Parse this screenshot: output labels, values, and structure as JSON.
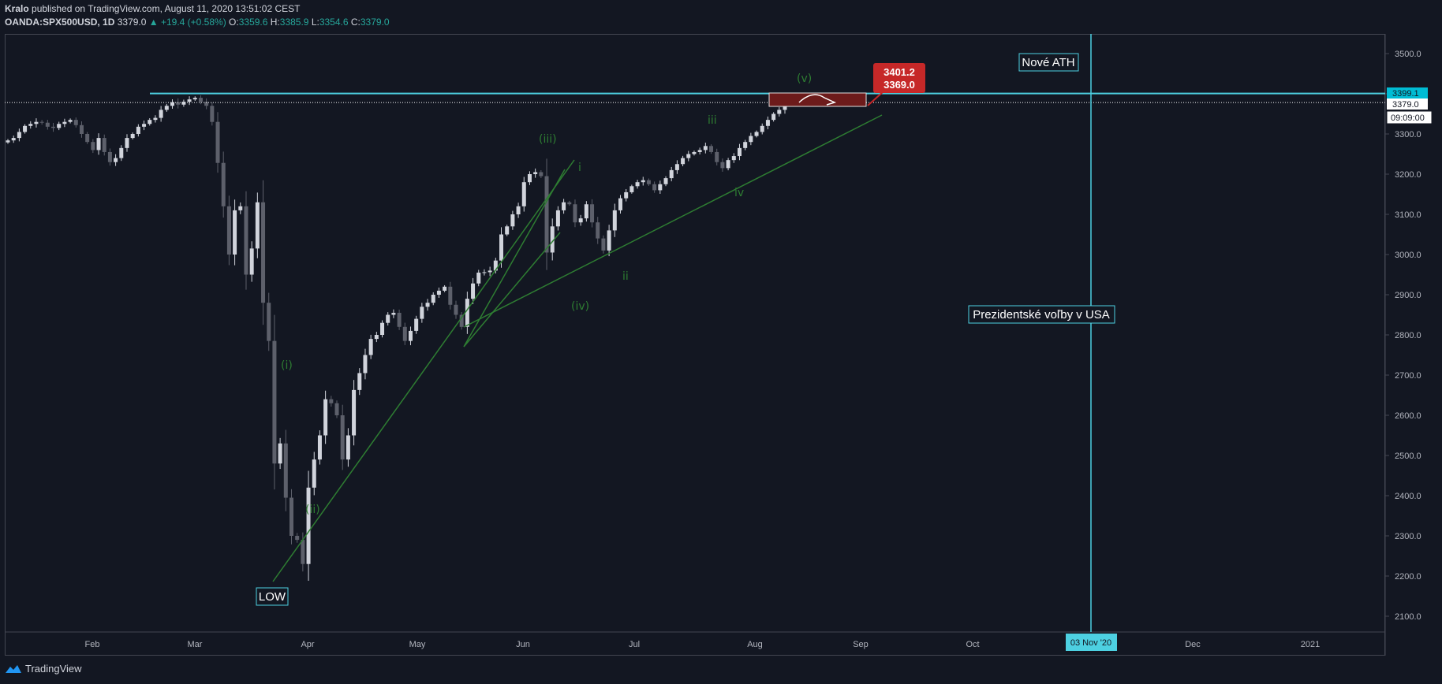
{
  "header": {
    "line1_author": "Kralo",
    "line1_rest": "published on TradingView.com, August 11, 2020 13:51:02 CEST",
    "symbol": "OANDA:SPX500USD, 1D",
    "last": "3379.0",
    "change": "▲ +19.4 (+0.58%)",
    "o_label": "O:",
    "o": "3359.6",
    "h_label": "H:",
    "h": "3385.9",
    "l_label": "L:",
    "l": "3354.6",
    "c_label": "C:",
    "c": "3379.0"
  },
  "footer": {
    "brand": "TradingView"
  },
  "colors": {
    "background": "#131722",
    "up": "#d1d4dc",
    "down": "#5d606b",
    "line": "#4dd0e1",
    "trend": "#2e7d32",
    "target": "#b71c1c"
  },
  "chart_data": {
    "type": "candlestick",
    "y_ticks": [
      3500,
      3400,
      3300,
      3200,
      3100,
      3000,
      2900,
      2800,
      2700,
      2600,
      2500,
      2400,
      2300,
      2200,
      2100
    ],
    "ylim": [
      2080,
      3530
    ],
    "x_labels": [
      "Feb",
      "Mar",
      "Apr",
      "May",
      "Jun",
      "Jul",
      "Aug",
      "Sep",
      "Oct",
      "Dec",
      "2021"
    ],
    "x_time_label": "03 Nov '20",
    "price_labels": {
      "resistance": "3399.1",
      "last": "3379.0",
      "countdown": "09:09:00"
    },
    "resistance": 3399.1,
    "last_price": 3379.0,
    "target_box": {
      "high": "3401.2",
      "low": "3369.0"
    },
    "annotations": {
      "low": "LOW",
      "ath": "Nové ATH",
      "election": "Prezidentské voľby v USA"
    },
    "waves": [
      "(i)",
      "(ii)",
      "(iii)",
      "(iv)",
      "(v)",
      "i",
      "ii",
      "iii",
      "iv"
    ],
    "closes": [
      3284,
      3290,
      3305,
      3320,
      3325,
      3330,
      3328,
      3318,
      3315,
      3325,
      3330,
      3335,
      3322,
      3300,
      3280,
      3260,
      3290,
      3255,
      3230,
      3240,
      3265,
      3290,
      3300,
      3318,
      3325,
      3335,
      3340,
      3360,
      3370,
      3379,
      3373,
      3380,
      3386,
      3390,
      3380,
      3370,
      3330,
      3228,
      3120,
      3000,
      3110,
      3120,
      2950,
      3015,
      3130,
      2880,
      2785,
      2480,
      2530,
      2395,
      2300,
      2290,
      2230,
      2420,
      2490,
      2550,
      2640,
      2630,
      2600,
      2490,
      2550,
      2663,
      2705,
      2750,
      2790,
      2800,
      2830,
      2850,
      2855,
      2820,
      2785,
      2810,
      2840,
      2870,
      2880,
      2900,
      2910,
      2920,
      2875,
      2850,
      2820,
      2890,
      2928,
      2955,
      2956,
      2960,
      2985,
      3050,
      3070,
      3100,
      3120,
      3180,
      3200,
      3205,
      3195,
      3005,
      3070,
      3110,
      3130,
      3125,
      3080,
      3090,
      3125,
      3080,
      3040,
      3010,
      3060,
      3110,
      3140,
      3155,
      3170,
      3180,
      3185,
      3175,
      3160,
      3175,
      3190,
      3210,
      3225,
      3240,
      3250,
      3255,
      3260,
      3270,
      3255,
      3230,
      3215,
      3235,
      3245,
      3265,
      3280,
      3295,
      3305,
      3320,
      3335,
      3350,
      3360,
      3379
    ]
  }
}
